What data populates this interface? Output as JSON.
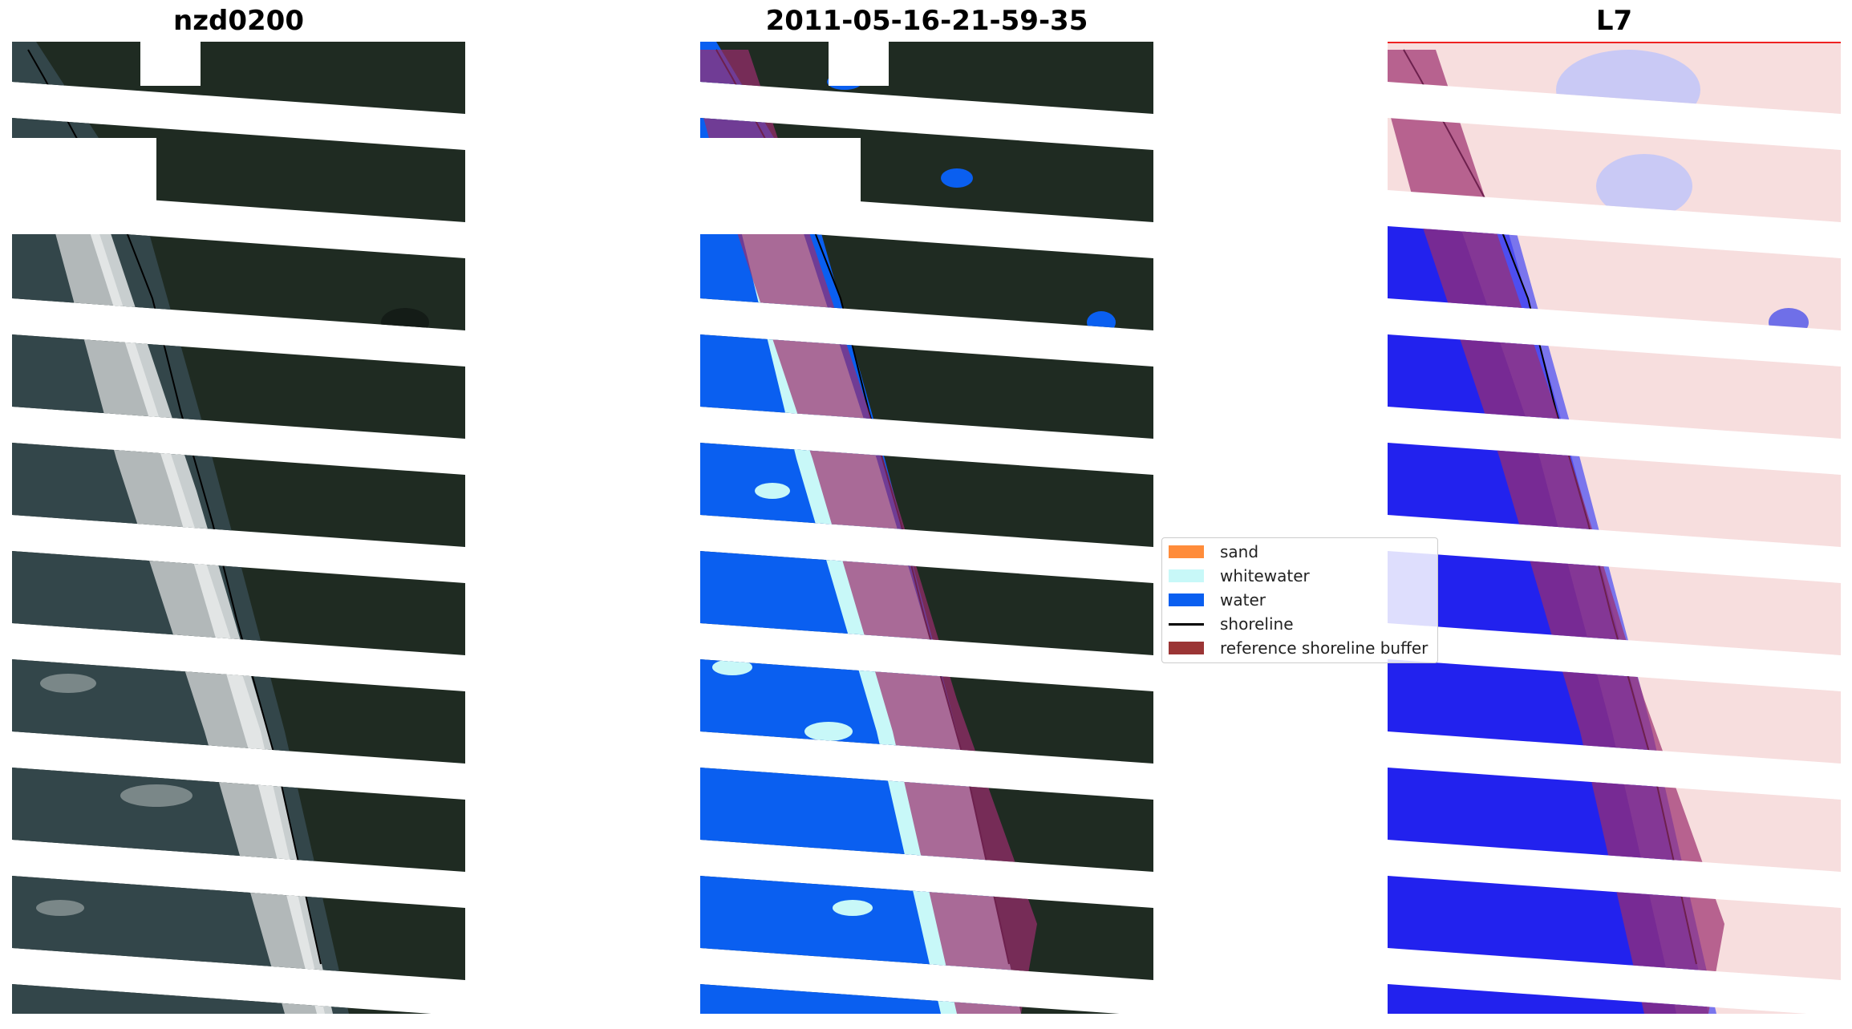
{
  "panels": [
    {
      "title": "nzd0200"
    },
    {
      "title": "2011-05-16-21-59-35"
    },
    {
      "title": "L7"
    }
  ],
  "legend": {
    "items": [
      {
        "label": "sand",
        "color": "#ff8c3a"
      },
      {
        "label": "whitewater",
        "color": "#c8f8f8"
      },
      {
        "label": "water",
        "color": "#0a5ff0"
      },
      {
        "label": "shoreline",
        "color": "#000000"
      },
      {
        "label": "reference shoreline buffer",
        "color": "#9b3535"
      }
    ]
  },
  "colors": {
    "land": "#1f2b22",
    "ocean_rgb": "#33464a",
    "surf": "#d8dcdc",
    "buffer": "#9b2d6e",
    "water_index_high": "#2222ee",
    "water_index_low": "#f4c8c8"
  }
}
